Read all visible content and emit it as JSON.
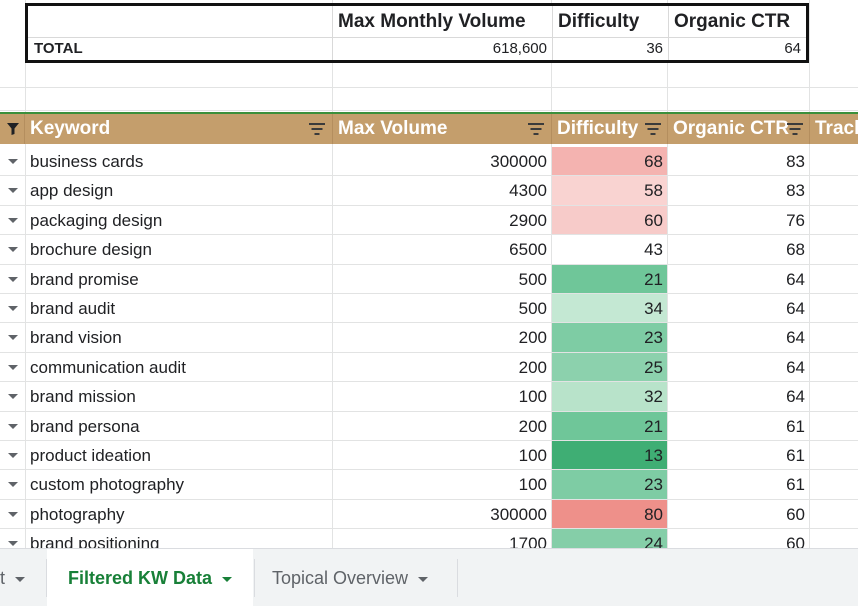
{
  "summary": {
    "headers": [
      "Max Monthly Volume",
      "Difficulty",
      "Organic CTR"
    ],
    "total_label": "TOTAL",
    "total_values": [
      "618,600",
      "36",
      "64"
    ]
  },
  "table": {
    "headers": [
      "Keyword",
      "Max Volume",
      "Difficulty",
      "Organic CTR",
      "Track"
    ],
    "rows": [
      {
        "keyword": "business cards",
        "volume": "300000",
        "difficulty": "68",
        "ctr": "83",
        "diff_color": "#f4b3b0"
      },
      {
        "keyword": "app design",
        "volume": "4300",
        "difficulty": "58",
        "ctr": "83",
        "diff_color": "#f9d3d1"
      },
      {
        "keyword": "packaging design",
        "volume": "2900",
        "difficulty": "60",
        "ctr": "76",
        "diff_color": "#f7cbc9"
      },
      {
        "keyword": "brochure design",
        "volume": "6500",
        "difficulty": "43",
        "ctr": "68",
        "diff_color": "#ffffff"
      },
      {
        "keyword": "brand promise",
        "volume": "500",
        "difficulty": "21",
        "ctr": "64",
        "diff_color": "#6fc699"
      },
      {
        "keyword": "brand audit",
        "volume": "500",
        "difficulty": "34",
        "ctr": "64",
        "diff_color": "#c4e8d3"
      },
      {
        "keyword": "brand vision",
        "volume": "200",
        "difficulty": "23",
        "ctr": "64",
        "diff_color": "#7ecca4"
      },
      {
        "keyword": "communication audit",
        "volume": "200",
        "difficulty": "25",
        "ctr": "64",
        "diff_color": "#8cd1ad"
      },
      {
        "keyword": "brand mission",
        "volume": "100",
        "difficulty": "32",
        "ctr": "64",
        "diff_color": "#b8e3ca"
      },
      {
        "keyword": "brand persona",
        "volume": "200",
        "difficulty": "21",
        "ctr": "61",
        "diff_color": "#6fc699"
      },
      {
        "keyword": "product ideation",
        "volume": "100",
        "difficulty": "13",
        "ctr": "61",
        "diff_color": "#3fae74"
      },
      {
        "keyword": "custom photography",
        "volume": "100",
        "difficulty": "23",
        "ctr": "61",
        "diff_color": "#7ecca4"
      },
      {
        "keyword": "photography",
        "volume": "300000",
        "difficulty": "80",
        "ctr": "60",
        "diff_color": "#ee908a"
      },
      {
        "keyword": "brand positioning",
        "volume": "1700",
        "difficulty": "24",
        "ctr": "60",
        "diff_color": "#85cea8"
      }
    ]
  },
  "tabs": [
    {
      "label": "t"
    },
    {
      "label": "Filtered KW Data"
    },
    {
      "label": "Topical Overview"
    }
  ],
  "colors": {
    "header_bg": "#c49e6c",
    "active_tab_text": "#188038",
    "header_border": "#3b8f3b"
  },
  "icons": {
    "filter_active": "funnel-icon",
    "filter_menu": "filter-lines-icon",
    "dropdown": "triangle-down-icon"
  }
}
